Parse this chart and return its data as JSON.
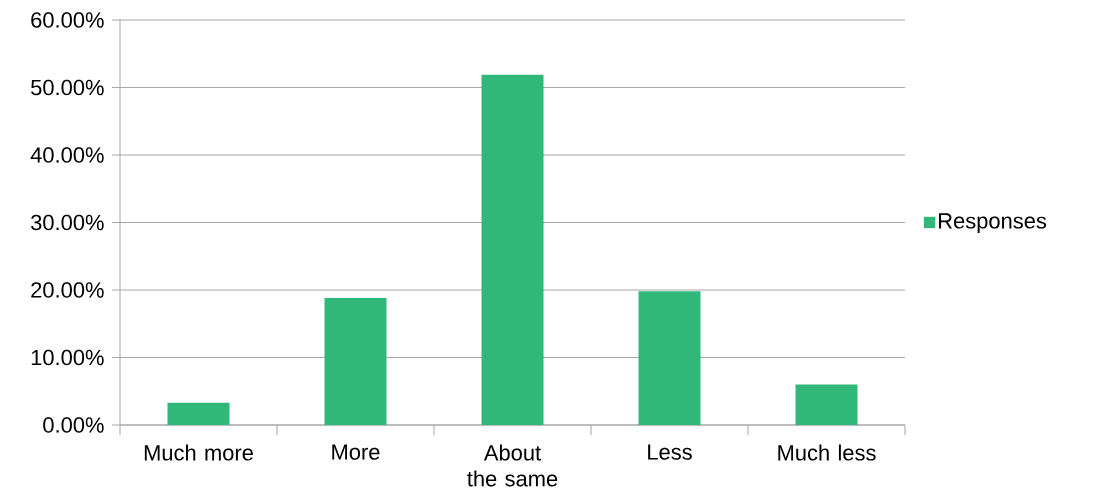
{
  "chart_data": {
    "type": "bar",
    "categories": [
      "Much more",
      "More",
      "About the same",
      "Less",
      "Much less"
    ],
    "series": [
      {
        "name": "Responses",
        "color": "#30b77a",
        "values": [
          3.3,
          18.8,
          51.9,
          19.8,
          6.0
        ]
      }
    ],
    "ylim": [
      0,
      60
    ],
    "yticks": [
      {
        "value": 0,
        "label": "0.00%"
      },
      {
        "value": 10,
        "label": "10.00%"
      },
      {
        "value": 20,
        "label": "20.00%"
      },
      {
        "value": 30,
        "label": "30.00%"
      },
      {
        "value": 40,
        "label": "40.00%"
      },
      {
        "value": 50,
        "label": "50.00%"
      },
      {
        "value": 60,
        "label": "60.00%"
      }
    ],
    "grid": "y",
    "legend": "right"
  }
}
